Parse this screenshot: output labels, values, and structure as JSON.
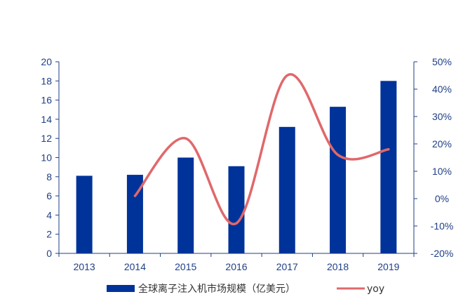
{
  "chart_data": {
    "type": "bar",
    "categories": [
      "2013",
      "2014",
      "2015",
      "2016",
      "2017",
      "2018",
      "2019"
    ],
    "series": [
      {
        "name": "全球离子注入机市场规模（亿美元）",
        "type": "bar",
        "axis": "left",
        "values": [
          8.1,
          8.2,
          10.0,
          9.1,
          13.2,
          15.3,
          18.0
        ]
      },
      {
        "name": "yoy",
        "type": "line",
        "axis": "right",
        "x": [
          "2014",
          "2015",
          "2016",
          "2017",
          "2018",
          "2019"
        ],
        "values": [
          0.01,
          0.22,
          -0.09,
          0.45,
          0.16,
          0.18
        ]
      }
    ],
    "y_left": {
      "lim": [
        0,
        20
      ],
      "ticks": [
        "0",
        "2",
        "4",
        "6",
        "8",
        "10",
        "12",
        "14",
        "16",
        "18",
        "20"
      ]
    },
    "y_right": {
      "lim": [
        -0.2,
        0.5
      ],
      "ticks": [
        "-20%",
        "-10%",
        "0%",
        "10%",
        "20%",
        "30%",
        "40%",
        "50%"
      ]
    },
    "grid": false,
    "legend_position": "bottom",
    "colors": {
      "bar": "#003399",
      "line": "#e0686b",
      "axis": "#1f3f86"
    }
  }
}
